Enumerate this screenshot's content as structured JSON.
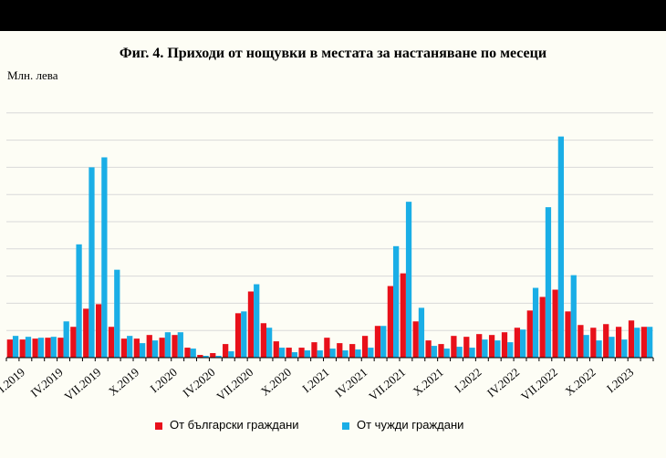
{
  "chart_data": {
    "type": "bar",
    "title": "Фиг. 4. Приходи от нощувки в местата за настаняване по месеци",
    "ylabel": "Млн. лева",
    "xlabel": "",
    "ylim": [
      0,
      300
    ],
    "grid": true,
    "legend_position": "bottom",
    "categories": [
      "I.2019",
      "II.2019",
      "III.2019",
      "IV.2019",
      "V.2019",
      "VI.2019",
      "VII.2019",
      "VIII.2019",
      "IX.2019",
      "X.2019",
      "XI.2019",
      "XII.2019",
      "I.2020",
      "II.2020",
      "III.2020",
      "IV.2020",
      "V.2020",
      "VI.2020",
      "VII.2020",
      "VIII.2020",
      "IX.2020",
      "X.2020",
      "XI.2020",
      "XII.2020",
      "I.2021",
      "II.2021",
      "III.2021",
      "IV.2021",
      "V.2021",
      "VI.2021",
      "VII.2021",
      "VIII.2021",
      "IX.2021",
      "X.2021",
      "XI.2021",
      "XII.2021",
      "I.2022",
      "II.2022",
      "III.2022",
      "IV.2022",
      "V.2022",
      "VI.2022",
      "VII.2022",
      "VIII.2022",
      "IX.2022",
      "X.2022",
      "XI.2022",
      "XII.2022",
      "I.2023",
      "II.2023",
      "III.2023"
    ],
    "tick_labels": [
      {
        "index": 0,
        "label": "I.2019"
      },
      {
        "index": 3,
        "label": "IV.2019"
      },
      {
        "index": 6,
        "label": "VII.2019"
      },
      {
        "index": 9,
        "label": "X.2019"
      },
      {
        "index": 12,
        "label": "I.2020"
      },
      {
        "index": 15,
        "label": "IV.2020"
      },
      {
        "index": 18,
        "label": "VII.2020"
      },
      {
        "index": 21,
        "label": "X.2020"
      },
      {
        "index": 24,
        "label": "I.2021"
      },
      {
        "index": 27,
        "label": "IV.2021"
      },
      {
        "index": 30,
        "label": "VII.2021"
      },
      {
        "index": 33,
        "label": "X.2021"
      },
      {
        "index": 36,
        "label": "I.2022"
      },
      {
        "index": 39,
        "label": "IV.2022"
      },
      {
        "index": 42,
        "label": "VII.2022"
      },
      {
        "index": 45,
        "label": "X.2022"
      },
      {
        "index": 48,
        "label": "I.2023"
      }
    ],
    "series": [
      {
        "name": "От български граждани",
        "color": "#e8101a",
        "values": [
          20,
          20,
          21,
          22,
          22,
          34,
          54,
          59,
          34,
          21,
          21,
          25,
          22,
          25,
          11,
          3,
          5,
          15,
          49,
          73,
          38,
          18,
          11,
          11,
          17,
          22,
          16,
          15,
          24,
          35,
          79,
          93,
          40,
          19,
          15,
          24,
          23,
          26,
          25,
          28,
          33,
          52,
          67,
          75,
          51,
          36,
          33,
          37,
          34,
          41,
          34
        ]
      },
      {
        "name": "От чужди граждани",
        "color": "#1aaee6",
        "values": [
          24,
          23,
          22,
          23,
          40,
          125,
          210,
          221,
          97,
          24,
          16,
          19,
          28,
          28,
          10,
          2,
          2,
          7,
          51,
          81,
          33,
          11,
          6,
          8,
          8,
          10,
          8,
          9,
          11,
          35,
          123,
          172,
          55,
          13,
          10,
          12,
          11,
          20,
          19,
          17,
          31,
          77,
          166,
          244,
          91,
          25,
          19,
          23,
          20,
          33,
          34
        ]
      }
    ]
  }
}
